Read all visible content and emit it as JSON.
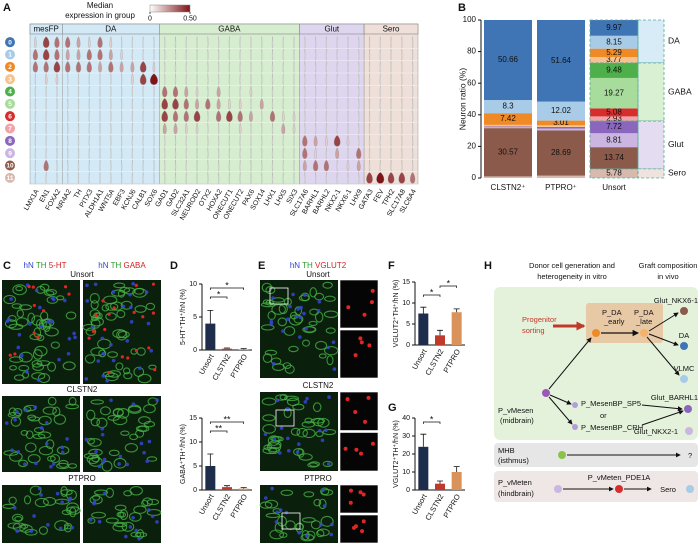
{
  "panel_labels": [
    "A",
    "B",
    "C",
    "D",
    "E",
    "F",
    "G",
    "H"
  ],
  "chart_data": [
    {
      "type": "violin",
      "colorbar_title": [
        "Median",
        "expression in group"
      ],
      "clim": [
        0,
        0.5
      ],
      "colorbar_ticks": [
        0,
        {
          "value": 0.5,
          "label": "0.50"
        }
      ],
      "colorbar_colors": [
        "#ffffff",
        "#7f1416"
      ],
      "groups": [
        "mesFP",
        "DA",
        "GABA",
        "Glut",
        "Sero"
      ],
      "group_colors": [
        "#d3e9f5",
        "#d3e9f5",
        "#d6edcf",
        "#ded6ee",
        "#eedfd9"
      ],
      "genes": [
        [
          "LMX1A",
          "EN1",
          "FOXA2"
        ],
        [
          "NR4A2",
          "TH",
          "PITX3",
          "ALDH1A1",
          "WNT5A",
          "EBF3",
          "KCNJ6",
          "CALB1",
          "SOX6"
        ],
        [
          "GAD1",
          "GAD2",
          "SLC32A1",
          "NEUROD2",
          "OTX2",
          "HOXA2",
          "ONECUT1",
          "ONECUT2",
          "PAX6",
          "SOX14",
          "LHX1",
          "LHX5",
          "SIX3"
        ],
        [
          "SLC17A6",
          "BARHL1",
          "BARHL2",
          "NKX2-1",
          "NKX6-1",
          "LHX9"
        ],
        [
          "GATA3",
          "FEV",
          "TPH2",
          "SLC17A8",
          "SLC6A4"
        ]
      ],
      "clusters": [
        "0",
        "1",
        "2",
        "3",
        "4",
        "5",
        "6",
        "7",
        "8",
        "9",
        "10",
        "11"
      ],
      "cluster_colors": [
        "#3f74b5",
        "#a8cbe8",
        "#ef8a26",
        "#f6c38e",
        "#4db04a",
        "#a8dc9c",
        "#d62d2d",
        "#f3a3a8",
        "#8a66bd",
        "#cbb6e1",
        "#8c5a4b",
        "#d8b9ad"
      ],
      "values": [
        [
          0.1,
          0.4,
          0.3,
          0.3,
          0.2,
          0.1,
          0.3,
          0.1,
          0,
          0,
          0,
          0,
          0,
          0,
          0,
          0,
          0,
          0,
          0,
          0,
          0,
          0,
          0,
          0,
          0,
          0,
          0,
          0,
          0,
          0,
          0,
          0,
          0,
          0,
          0,
          0
        ],
        [
          0.3,
          0.4,
          0.3,
          0.2,
          0.2,
          0.3,
          0.3,
          0.2,
          0.1,
          0,
          0,
          0,
          0,
          0,
          0,
          0,
          0,
          0,
          0,
          0,
          0,
          0,
          0,
          0,
          0,
          0,
          0,
          0,
          0,
          0,
          0,
          0,
          0,
          0,
          0,
          0
        ],
        [
          0.3,
          0.3,
          0.4,
          0.3,
          0.3,
          0.3,
          0.2,
          0.3,
          0.2,
          0.2,
          0.4,
          0.1,
          0,
          0,
          0,
          0,
          0,
          0,
          0,
          0,
          0,
          0,
          0,
          0,
          0,
          0,
          0,
          0,
          0,
          0,
          0,
          0,
          0,
          0,
          0,
          0
        ],
        [
          0,
          0.1,
          0.1,
          0,
          0,
          0,
          0,
          0,
          0,
          0.1,
          0.4,
          0.5,
          0,
          0,
          0,
          0,
          0,
          0,
          0,
          0,
          0,
          0,
          0,
          0,
          0,
          0,
          0,
          0,
          0,
          0,
          0,
          0,
          0,
          0,
          0,
          0
        ],
        [
          0,
          0,
          0,
          0,
          0,
          0,
          0,
          0,
          0,
          0,
          0,
          0,
          0.3,
          0.3,
          0.2,
          0.1,
          0,
          0.2,
          0,
          0,
          0.1,
          0,
          0,
          0,
          0,
          0,
          0,
          0,
          0,
          0,
          0,
          0,
          0,
          0,
          0,
          0
        ],
        [
          0,
          0,
          0,
          0,
          0,
          0,
          0,
          0,
          0,
          0,
          0,
          0,
          0.4,
          0.4,
          0.3,
          0.2,
          0.3,
          0.2,
          0.1,
          0.1,
          0,
          0.2,
          0,
          0,
          0,
          0,
          0,
          0,
          0,
          0,
          0,
          0,
          0,
          0,
          0,
          0
        ],
        [
          0,
          0,
          0,
          0,
          0,
          0,
          0,
          0,
          0,
          0,
          0,
          0,
          0.4,
          0.3,
          0.3,
          0.4,
          0,
          0.3,
          0.4,
          0.3,
          0.2,
          0,
          0.3,
          0.1,
          0.1,
          0,
          0,
          0,
          0,
          0,
          0,
          0,
          0,
          0,
          0,
          0
        ],
        [
          0,
          0,
          0,
          0,
          0,
          0,
          0,
          0,
          0,
          0,
          0,
          0,
          0.2,
          0.2,
          0.1,
          0.1,
          0,
          0,
          0,
          0.1,
          0,
          0,
          0,
          0.2,
          0.1,
          0,
          0,
          0,
          0,
          0,
          0,
          0,
          0,
          0,
          0,
          0
        ],
        [
          0,
          0,
          0,
          0,
          0,
          0,
          0,
          0,
          0,
          0,
          0,
          0,
          0,
          0,
          0,
          0,
          0,
          0,
          0,
          0,
          0,
          0,
          0,
          0,
          0,
          0.3,
          0.2,
          0.1,
          0.4,
          0.1,
          0,
          0,
          0,
          0,
          0,
          0
        ],
        [
          0,
          0,
          0,
          0,
          0,
          0,
          0,
          0,
          0,
          0,
          0,
          0,
          0,
          0,
          0,
          0,
          0,
          0,
          0,
          0,
          0,
          0,
          0,
          0,
          0,
          0.3,
          0.1,
          0,
          0.2,
          0,
          0.3,
          0,
          0,
          0,
          0,
          0
        ],
        [
          0,
          0.3,
          0,
          0,
          0,
          0,
          0,
          0,
          0,
          0,
          0,
          0,
          0,
          0,
          0,
          0,
          0,
          0,
          0,
          0,
          0,
          0,
          0,
          0,
          0,
          0.2,
          0.3,
          0.3,
          0,
          0.1,
          0.2,
          0,
          0,
          0,
          0,
          0
        ],
        [
          0,
          0,
          0,
          0,
          0,
          0,
          0,
          0,
          0,
          0,
          0,
          0,
          0,
          0,
          0,
          0,
          0,
          0,
          0,
          0,
          0,
          0,
          0,
          0,
          0,
          0,
          0,
          0,
          0,
          0,
          0,
          0.4,
          0.5,
          0.4,
          0.4,
          0.3
        ]
      ]
    },
    {
      "type": "bar",
      "stacked": true,
      "ylabel": "Neuron ratio (%)",
      "categories": [
        "CLSTN2⁺",
        "PTPRO⁺",
        "Unsort"
      ],
      "ylim": [
        0,
        100
      ],
      "yticks": [
        0,
        20,
        40,
        60,
        80,
        100
      ],
      "groups": [
        "DA",
        "GABA",
        "Glut",
        "Sero"
      ],
      "group_colors": [
        "#d7ecf7",
        "#d9f0d3",
        "#e4dcf1",
        "#efe3de"
      ],
      "series": [
        {
          "color": "#3f74b5",
          "values": [
            50.66,
            51.64,
            9.97
          ]
        },
        {
          "color": "#a8cbe8",
          "values": [
            8.3,
            12.02,
            8.15
          ]
        },
        {
          "color": "#ef8a26",
          "values": [
            7.42,
            3.01,
            5.29
          ]
        },
        {
          "color": "#f6c38e",
          "values": [
            1.0,
            1.0,
            3.77
          ]
        },
        {
          "color": "#4db04a",
          "values": [
            0,
            0,
            9.48
          ]
        },
        {
          "color": "#a8dc9c",
          "values": [
            0,
            0,
            19.27
          ]
        },
        {
          "color": "#d62d2d",
          "values": [
            0,
            0,
            5.08
          ]
        },
        {
          "color": "#f3a3a8",
          "values": [
            0,
            0,
            2.93
          ]
        },
        {
          "color": "#8a66bd",
          "values": [
            0.5,
            1.0,
            7.72
          ]
        },
        {
          "color": "#cbb6e1",
          "values": [
            0.55,
            1.14,
            8.81
          ]
        },
        {
          "color": "#8c5a4b",
          "values": [
            30.57,
            28.69,
            13.74
          ]
        },
        {
          "color": "#d8b9ad",
          "values": [
            1.0,
            1.5,
            5.78
          ]
        }
      ]
    },
    {
      "type": "bar",
      "ylabel": "5-HT⁺TH⁺/hN (%)",
      "categories": [
        "Unsort",
        "CLSTN2",
        "PTPRO"
      ],
      "values": [
        4,
        0.2,
        0.1
      ],
      "errors": [
        2,
        0.1,
        0.1
      ],
      "colors": [
        "#1f2d4d",
        "#c0392b",
        "#d9935a"
      ],
      "ylim": [
        0,
        10
      ],
      "yticks": [
        0,
        5,
        10
      ],
      "annotations": [
        "*",
        "*"
      ]
    },
    {
      "type": "bar",
      "ylabel": "GABA⁺TH⁺/hN (%)",
      "categories": [
        "Unsort",
        "CLSTN2",
        "PTPRO"
      ],
      "values": [
        5,
        0.6,
        0.3
      ],
      "errors": [
        2.5,
        0.3,
        0.2
      ],
      "colors": [
        "#1f2d4d",
        "#c0392b",
        "#d9935a"
      ],
      "ylim": [
        0,
        15
      ],
      "yticks": [
        0,
        5,
        10,
        15
      ],
      "annotations": [
        "**",
        "**"
      ]
    },
    {
      "type": "bar",
      "ylabel": "VGLUT2⁺TH⁺/hN (%)",
      "categories": [
        "Unsort",
        "CLSTN2",
        "PTPRO"
      ],
      "values": [
        7.5,
        2.3,
        7.8
      ],
      "errors": [
        1.5,
        1.2,
        0.8
      ],
      "colors": [
        "#1f2d4d",
        "#c0392b",
        "#d9935a"
      ],
      "ylim": [
        0,
        15
      ],
      "yticks": [
        0,
        5,
        10,
        15
      ],
      "annotations": [
        "*",
        "*"
      ]
    },
    {
      "type": "bar",
      "ylabel": "VGLUT2⁺TH⁺/hN (%)",
      "categories": [
        "Unsort",
        "CLSTN2",
        "PTPRO"
      ],
      "values": [
        24,
        3.5,
        10
      ],
      "errors": [
        7,
        1.5,
        3
      ],
      "colors": [
        "#1f2d4d",
        "#c0392b",
        "#d9935a"
      ],
      "ylim": [
        0,
        40
      ],
      "yticks": [
        0,
        10,
        20,
        30,
        40
      ],
      "annotations": [
        "*"
      ]
    }
  ],
  "micrographs": {
    "C": {
      "headers": [
        [
          "hN",
          "TH",
          "5-HT"
        ],
        [
          "hN",
          "TH",
          "GABA"
        ]
      ],
      "rows": [
        "Unsort",
        "CLSTN2",
        "PTPRO"
      ]
    },
    "E": {
      "header": [
        "hN",
        "TH",
        "VGLUT2"
      ],
      "rows": [
        "Unsort",
        "CLSTN2",
        "PTPRO"
      ]
    }
  },
  "diagram": {
    "left_header": [
      "Donor cell generation and",
      "heterogeneity in vitro"
    ],
    "right_header": [
      "Graft composition",
      "in vivo"
    ],
    "sorting": [
      "Progenitor",
      "sorting"
    ],
    "nodes": [
      "P_DA",
      "_early",
      "P_DA",
      "_late",
      "Glut_NKX6-1",
      "DA",
      "VLMC",
      "P_vMesen",
      "(midbrain)",
      "P_MesenBP_SP5",
      "or",
      "P_MesenBP_CRH",
      "Glut_BARHL1",
      "Glut_NKX2-1",
      "MHB",
      "(isthmus)",
      "?",
      "P_vMeten",
      "(hindbrain)",
      "P_vMeten_PDE1A",
      "Sero"
    ]
  }
}
